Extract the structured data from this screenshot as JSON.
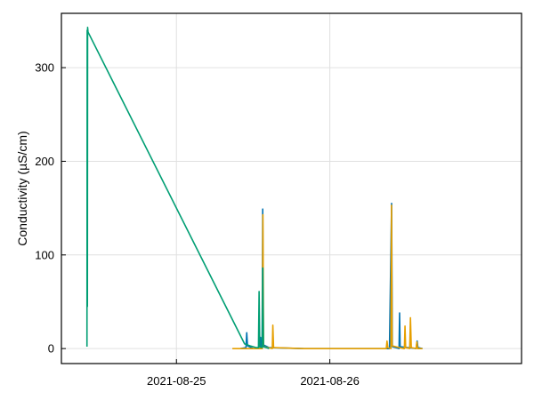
{
  "chart_data": {
    "type": "line",
    "title": "",
    "xlabel": "",
    "ylabel": "Conductivity (µS/cm)",
    "x_axis": {
      "kind": "datetime",
      "range": [
        "2021-08-24 06:00",
        "2021-08-27 06:00"
      ],
      "ticks": [
        {
          "value": "2021-08-25 00:00",
          "label": "2021-08-25"
        },
        {
          "value": "2021-08-26 00:00",
          "label": "2021-08-26"
        }
      ]
    },
    "y_axis": {
      "range": [
        -16,
        358
      ],
      "ticks": [
        {
          "value": 0,
          "label": "0"
        },
        {
          "value": 100,
          "label": "100"
        },
        {
          "value": 200,
          "label": "200"
        },
        {
          "value": 300,
          "label": "300"
        }
      ]
    },
    "grid": true,
    "legend": "none",
    "series": [
      {
        "color": "#0072B2",
        "points": [
          [
            "2021-08-25 10:00",
            0
          ],
          [
            "2021-08-25 10:53",
            1
          ],
          [
            "2021-08-25 11:00",
            17
          ],
          [
            "2021-08-25 11:07",
            3
          ],
          [
            "2021-08-25 12:00",
            0
          ],
          [
            "2021-08-25 13:05",
            0
          ],
          [
            "2021-08-25 13:10",
            12
          ],
          [
            "2021-08-25 13:15",
            1
          ],
          [
            "2021-08-25 13:24",
            0
          ],
          [
            "2021-08-25 13:30",
            149
          ],
          [
            "2021-08-25 13:36",
            4
          ],
          [
            "2021-08-25 14:30",
            1
          ],
          [
            "2021-08-25 20:00",
            0
          ],
          [
            "2021-08-26 09:20",
            0
          ],
          [
            "2021-08-26 09:40",
            155
          ],
          [
            "2021-08-26 09:47",
            2
          ],
          [
            "2021-08-26 10:50",
            0
          ],
          [
            "2021-08-26 10:55",
            38
          ],
          [
            "2021-08-26 11:00",
            2
          ],
          [
            "2021-08-26 13:30",
            0
          ],
          [
            "2021-08-26 13:40",
            8
          ],
          [
            "2021-08-26 13:47",
            1
          ],
          [
            "2021-08-26 14:30",
            0
          ]
        ]
      },
      {
        "color": "#E69F00",
        "points": [
          [
            "2021-08-25 08:45",
            0
          ],
          [
            "2021-08-25 13:26",
            0
          ],
          [
            "2021-08-25 13:32",
            143
          ],
          [
            "2021-08-25 13:38",
            2
          ],
          [
            "2021-08-25 15:00",
            0
          ],
          [
            "2021-08-25 15:05",
            25
          ],
          [
            "2021-08-25 15:12",
            1
          ],
          [
            "2021-08-25 20:00",
            0
          ],
          [
            "2021-08-26 08:50",
            0
          ],
          [
            "2021-08-26 08:57",
            8
          ],
          [
            "2021-08-26 09:04",
            1
          ],
          [
            "2021-08-26 09:34",
            0
          ],
          [
            "2021-08-26 09:39",
            153
          ],
          [
            "2021-08-26 09:45",
            3
          ],
          [
            "2021-08-26 11:30",
            0
          ],
          [
            "2021-08-26 11:40",
            0
          ],
          [
            "2021-08-26 11:46",
            24
          ],
          [
            "2021-08-26 11:52",
            1
          ],
          [
            "2021-08-26 12:30",
            0
          ],
          [
            "2021-08-26 12:37",
            33
          ],
          [
            "2021-08-26 12:45",
            1
          ],
          [
            "2021-08-26 13:30",
            0
          ],
          [
            "2021-08-26 13:37",
            7
          ],
          [
            "2021-08-26 13:44",
            0
          ],
          [
            "2021-08-26 14:30",
            0
          ]
        ]
      },
      {
        "color": "#009E73",
        "points": [
          [
            "2021-08-24 10:00",
            2
          ],
          [
            "2021-08-24 10:02",
            340
          ],
          [
            "2021-08-24 10:04",
            45
          ],
          [
            "2021-08-24 10:06",
            343
          ],
          [
            "2021-08-24 10:10",
            338
          ],
          [
            "2021-08-25 10:40",
            5
          ],
          [
            "2021-08-25 11:30",
            3
          ],
          [
            "2021-08-25 12:30",
            1
          ],
          [
            "2021-08-25 12:50",
            1
          ],
          [
            "2021-08-25 12:56",
            61
          ],
          [
            "2021-08-25 13:02",
            2
          ],
          [
            "2021-08-25 13:25",
            1
          ],
          [
            "2021-08-25 13:31",
            86
          ],
          [
            "2021-08-25 13:37",
            2
          ],
          [
            "2021-08-25 14:30",
            0
          ]
        ]
      }
    ]
  }
}
